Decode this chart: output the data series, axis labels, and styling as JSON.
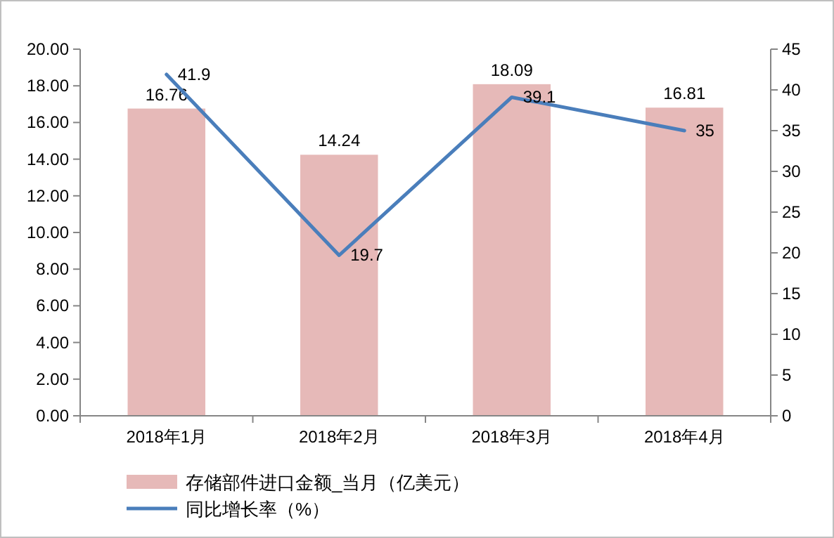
{
  "chart_data": {
    "type": "bar",
    "categories": [
      "2018年1月",
      "2018年2月",
      "2018年3月",
      "2018年4月"
    ],
    "series": [
      {
        "name": "存储部件进口金额_当月（亿美元）",
        "color": "#e6b9b8",
        "values": [
          16.76,
          14.24,
          18.09,
          16.81
        ]
      },
      {
        "name": "同比增长率（%）",
        "type": "line",
        "axis": "y2",
        "color": "#4a7ebb",
        "values": [
          41.9,
          19.7,
          39.1,
          35
        ]
      }
    ],
    "ylim": [
      0,
      20
    ],
    "yticks": [
      {
        "value": 0,
        "label": "0.00"
      },
      {
        "value": 2,
        "label": "2.00"
      },
      {
        "value": 4,
        "label": "4.00"
      },
      {
        "value": 6,
        "label": "6.00"
      },
      {
        "value": 8,
        "label": "8.00"
      },
      {
        "value": 10,
        "label": "10.00"
      },
      {
        "value": 12,
        "label": "12.00"
      },
      {
        "value": 14,
        "label": "14.00"
      },
      {
        "value": 16,
        "label": "16.00"
      },
      {
        "value": 18,
        "label": "18.00"
      },
      {
        "value": 20,
        "label": "20.00"
      }
    ],
    "y2lim": [
      0,
      45
    ],
    "y2ticks": [
      0,
      5,
      10,
      15,
      20,
      25,
      30,
      35,
      40,
      45
    ],
    "data_labels": true,
    "legend": "bottom",
    "grid": false,
    "marker": "none",
    "line_style": "solid"
  }
}
